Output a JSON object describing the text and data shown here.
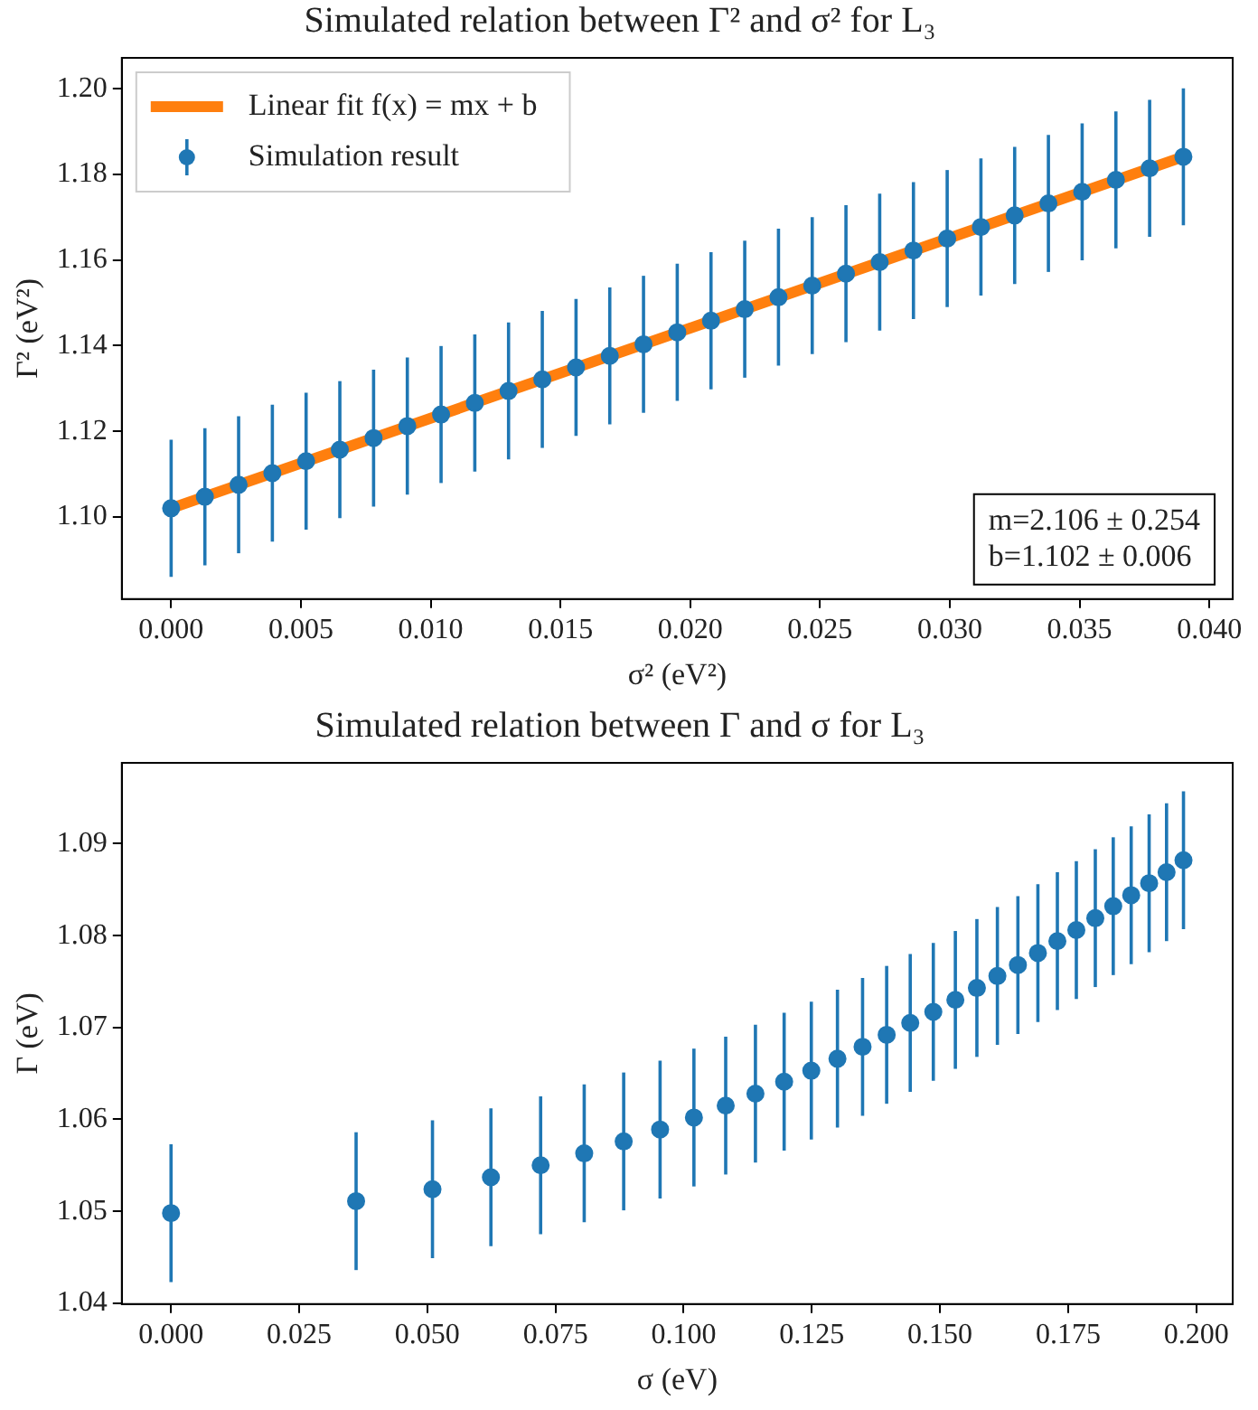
{
  "chart_data": [
    {
      "type": "scatter",
      "title": "Simulated relation between Γ² and σ² for L₃",
      "xlabel": "σ² (eV²)",
      "ylabel": "Γ² (eV²)",
      "x": [
        0,
        0.0013,
        0.0026,
        0.0039,
        0.0052,
        0.0065,
        0.0078,
        0.0091,
        0.0104,
        0.0117,
        0.013,
        0.0143,
        0.0156,
        0.0169,
        0.0182,
        0.0195,
        0.0208,
        0.0221,
        0.0234,
        0.0247,
        0.026,
        0.0273,
        0.0286,
        0.0299,
        0.0312,
        0.0325,
        0.0338,
        0.0351,
        0.0364,
        0.0377,
        0.039
      ],
      "series": [
        {
          "name": "Linear fit f(x) = mx + b",
          "type": "line",
          "marker": "none",
          "color": "#ff7f0e",
          "x": [
            0,
            0.039
          ],
          "values": [
            1.102,
            1.1841
          ]
        },
        {
          "name": "Simulation result",
          "color": "#1f77b4",
          "values": [
            1.102,
            1.1047,
            1.1075,
            1.1102,
            1.113,
            1.1157,
            1.1184,
            1.1212,
            1.1239,
            1.1266,
            1.1294,
            1.1321,
            1.1349,
            1.1376,
            1.1403,
            1.1431,
            1.1458,
            1.1485,
            1.1513,
            1.154,
            1.1568,
            1.1595,
            1.1622,
            1.165,
            1.1677,
            1.1704,
            1.1732,
            1.1759,
            1.1787,
            1.1814,
            1.1841
          ],
          "errors": [
            0.016,
            0.016,
            0.016,
            0.016,
            0.016,
            0.016,
            0.016,
            0.016,
            0.016,
            0.016,
            0.016,
            0.016,
            0.016,
            0.016,
            0.016,
            0.016,
            0.016,
            0.016,
            0.016,
            0.016,
            0.016,
            0.016,
            0.016,
            0.016,
            0.016,
            0.016,
            0.016,
            0.016,
            0.016,
            0.016,
            0.016
          ]
        }
      ],
      "xlim": [
        -0.0019,
        0.0409
      ],
      "ylim": [
        1.0808,
        1.2072
      ],
      "xticks": [
        {
          "value": 0,
          "label": "0.000"
        },
        0.005,
        {
          "value": 0.01,
          "label": "0.010"
        },
        0.015,
        {
          "value": 0.02,
          "label": "0.020"
        },
        0.025,
        {
          "value": 0.03,
          "label": "0.030"
        },
        0.035,
        {
          "value": 0.04,
          "label": "0.040"
        }
      ],
      "yticks": [
        {
          "value": 1.1,
          "label": "1.10"
        },
        1.12,
        1.14,
        1.16,
        1.18,
        {
          "value": 1.2,
          "label": "1.20"
        }
      ],
      "annotations": [
        "m=2.106 ± 0.254",
        "b=1.102 ± 0.006"
      ],
      "grid": false,
      "legend": "top left",
      "marker": "circle"
    },
    {
      "type": "scatter",
      "title": "Simulated relation between Γ and σ for L₃",
      "xlabel": "σ (eV)",
      "ylabel": "Γ (eV)",
      "x": [
        0,
        0.0361,
        0.051,
        0.0624,
        0.0721,
        0.0806,
        0.0883,
        0.0954,
        0.102,
        0.1082,
        0.114,
        0.1196,
        0.1249,
        0.13,
        0.1349,
        0.1396,
        0.1442,
        0.1487,
        0.153,
        0.1572,
        0.1612,
        0.1652,
        0.1691,
        0.1729,
        0.1766,
        0.1803,
        0.1838,
        0.1873,
        0.1908,
        0.1942,
        0.1975
      ],
      "series": [
        {
          "color": "#1f77b4",
          "values": [
            1.0498,
            1.0511,
            1.0524,
            1.0537,
            1.055,
            1.0563,
            1.0576,
            1.0589,
            1.0602,
            1.0615,
            1.0628,
            1.0641,
            1.0653,
            1.0666,
            1.0679,
            1.0692,
            1.0705,
            1.0717,
            1.073,
            1.0743,
            1.0756,
            1.0768,
            1.0781,
            1.0794,
            1.0806,
            1.0819,
            1.0832,
            1.0844,
            1.0857,
            1.0869,
            1.0882
          ],
          "errors": [
            0.0075,
            0.0075,
            0.0075,
            0.0075,
            0.0075,
            0.0075,
            0.0075,
            0.0075,
            0.0075,
            0.0075,
            0.0075,
            0.0075,
            0.0075,
            0.0075,
            0.0075,
            0.0075,
            0.0075,
            0.0075,
            0.0075,
            0.0075,
            0.0075,
            0.0075,
            0.0075,
            0.0075,
            0.0075,
            0.0075,
            0.0075,
            0.0075,
            0.0075,
            0.0075,
            0.0075
          ]
        }
      ],
      "xlim": [
        -0.0096,
        0.2071
      ],
      "ylim": [
        1.0399,
        1.0988
      ],
      "xticks": [
        {
          "value": 0,
          "label": "0.000"
        },
        0.025,
        {
          "value": 0.05,
          "label": "0.050"
        },
        0.075,
        {
          "value": 0.1,
          "label": "0.100"
        },
        0.125,
        {
          "value": 0.15,
          "label": "0.150"
        },
        0.175,
        {
          "value": 0.2,
          "label": "0.200"
        }
      ],
      "yticks": [
        1.04,
        1.05,
        1.06,
        1.07,
        1.08,
        1.09
      ],
      "grid": false,
      "legend": false,
      "marker": "circle"
    }
  ]
}
